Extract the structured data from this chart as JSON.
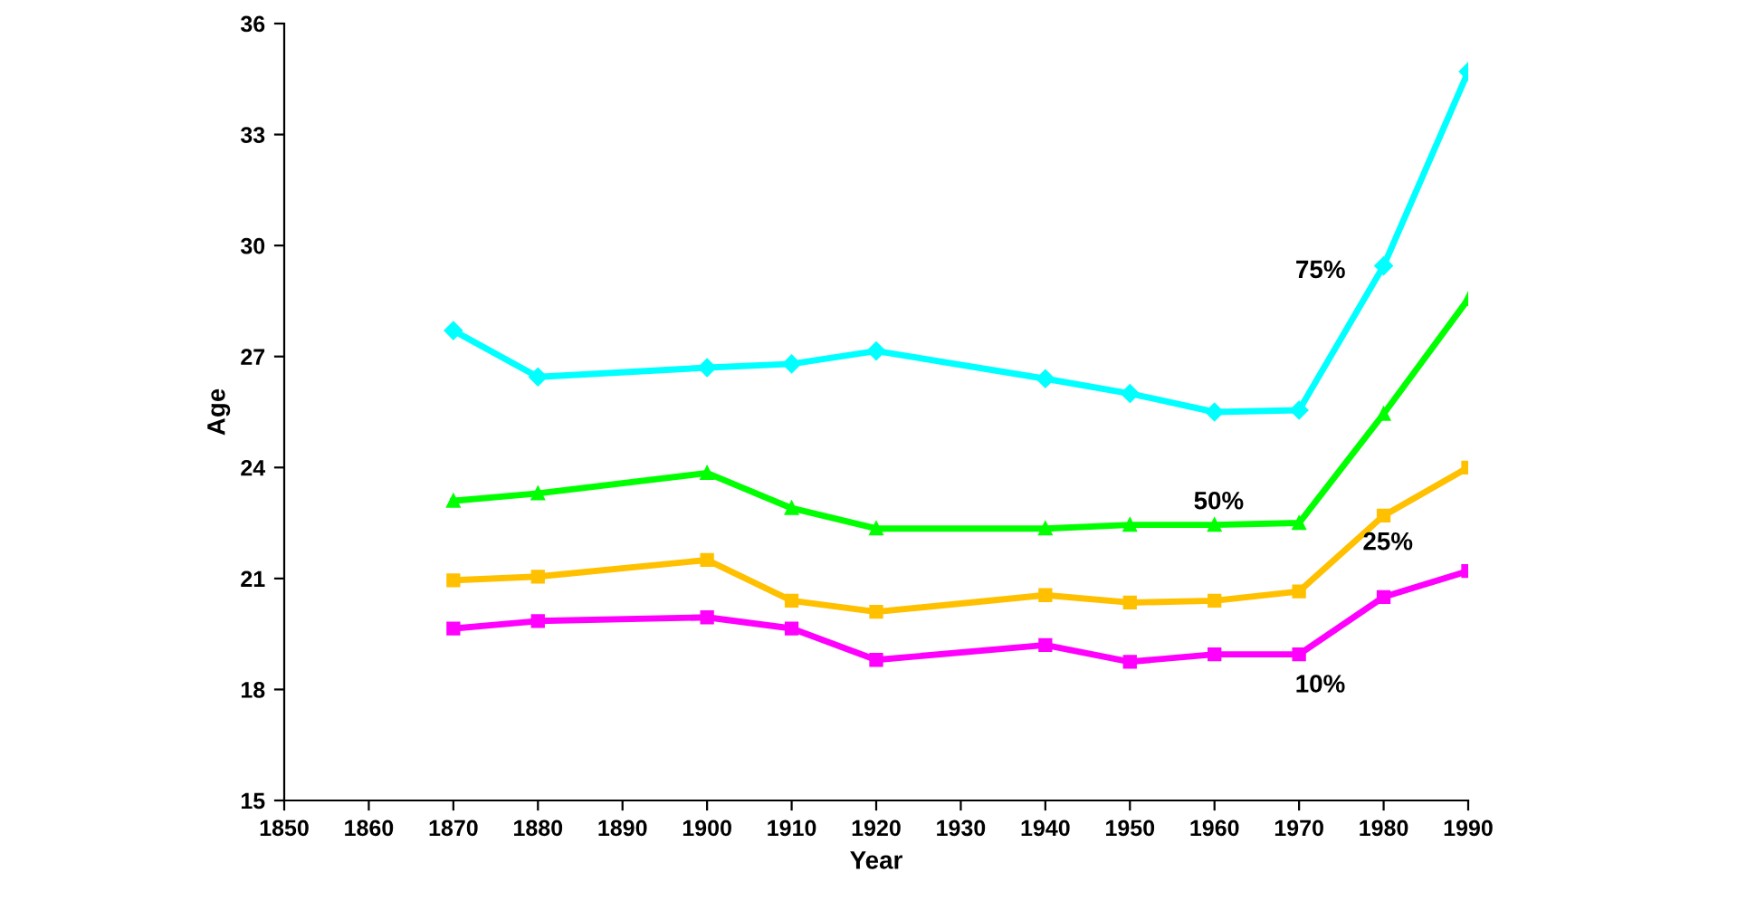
{
  "chart_data": {
    "type": "line",
    "xlabel": "Year",
    "ylabel": "Age",
    "x": [
      1870,
      1880,
      1900,
      1910,
      1920,
      1940,
      1950,
      1960,
      1970,
      1980,
      1990
    ],
    "xlim": [
      1850,
      1990
    ],
    "xticks": [
      1850,
      1860,
      1870,
      1880,
      1890,
      1900,
      1910,
      1920,
      1930,
      1940,
      1950,
      1960,
      1970,
      1980,
      1990
    ],
    "ylim": [
      15,
      36
    ],
    "yticks": [
      15,
      18,
      21,
      24,
      27,
      30,
      33,
      36
    ],
    "grid": false,
    "legend": false,
    "series": [
      {
        "name": "75%",
        "color": "#00ffff",
        "marker": "diamond",
        "values": [
          27.7,
          26.45,
          26.7,
          26.8,
          27.15,
          26.4,
          26.0,
          25.5,
          25.55,
          29.45,
          34.7
        ]
      },
      {
        "name": "50%",
        "color": "#00ff00",
        "marker": "triangle",
        "values": [
          23.1,
          23.3,
          23.85,
          22.9,
          22.35,
          22.35,
          22.45,
          22.45,
          22.5,
          25.45,
          28.55
        ]
      },
      {
        "name": "25%",
        "color": "#ffc000",
        "marker": "square",
        "values": [
          20.95,
          21.05,
          21.5,
          20.4,
          20.1,
          20.55,
          20.35,
          20.4,
          20.65,
          22.7,
          24.0
        ]
      },
      {
        "name": "10%",
        "color": "#ff00ff",
        "marker": "square",
        "values": [
          19.65,
          19.85,
          19.95,
          19.65,
          18.8,
          19.2,
          18.75,
          18.95,
          18.95,
          20.5,
          21.2
        ]
      }
    ]
  }
}
